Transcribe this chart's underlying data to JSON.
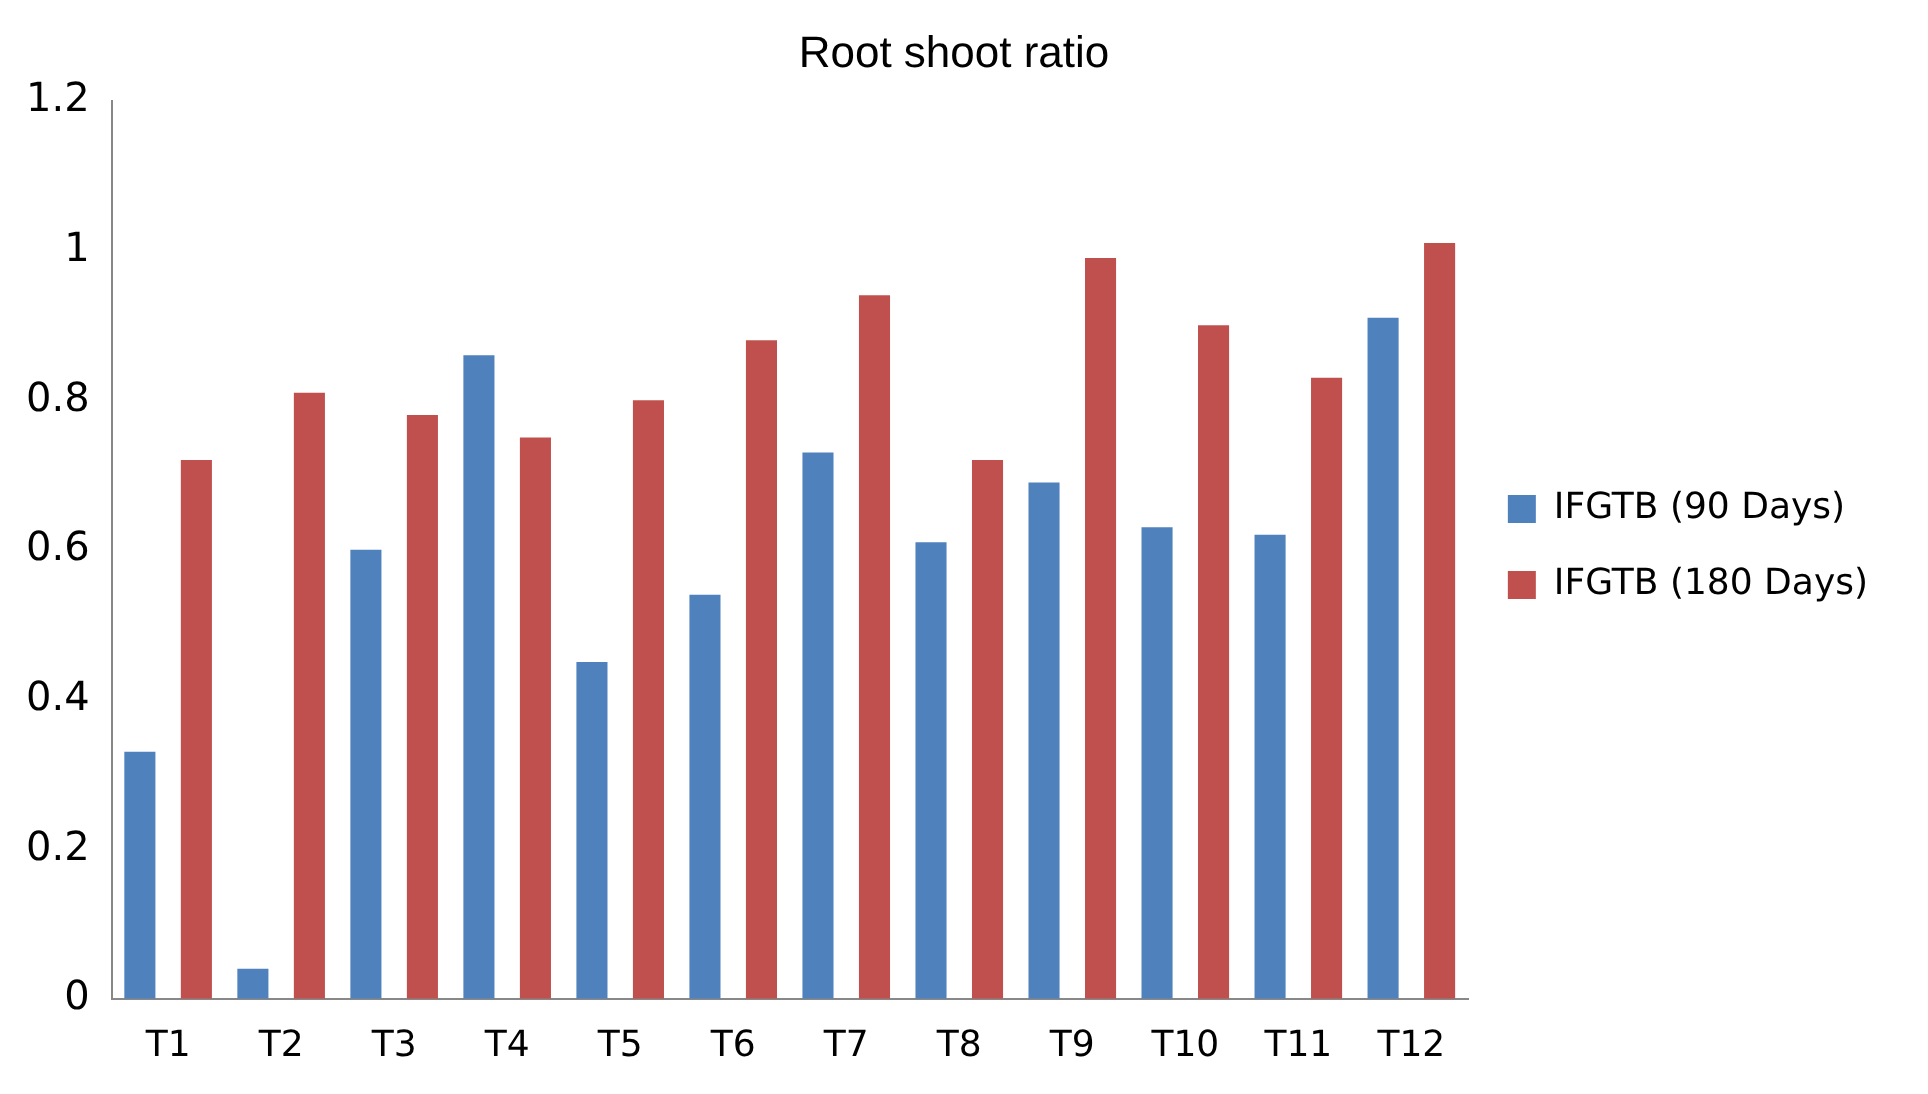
{
  "chart_data": {
    "type": "bar",
    "title": "Root shoot ratio",
    "categories": [
      "T1",
      "T2",
      "T3",
      "T4",
      "T5",
      "T6",
      "T7",
      "T8",
      "T9",
      "T10",
      "T11",
      "T12"
    ],
    "series": [
      {
        "name": "IFGTB (90 Days)",
        "color": "#4f81bd",
        "values": [
          0.33,
          0.04,
          0.6,
          0.86,
          0.45,
          0.54,
          0.73,
          0.61,
          0.69,
          0.63,
          0.62,
          0.91
        ]
      },
      {
        "name": "IFGTB (180 Days)",
        "color": "#c0504d",
        "values": [
          0.72,
          0.81,
          0.78,
          0.75,
          0.8,
          0.88,
          0.94,
          0.72,
          0.99,
          0.9,
          0.83,
          1.01
        ]
      }
    ],
    "ylim": [
      0,
      1.2
    ],
    "yticks": [
      0,
      0.2,
      0.4,
      0.6,
      0.8,
      1,
      1.2
    ],
    "grid": false,
    "legend": "right"
  }
}
